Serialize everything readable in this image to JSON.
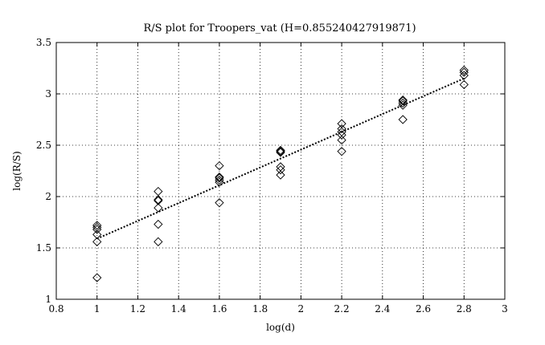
{
  "chart_data": {
    "type": "scatter",
    "title": "R/S plot for Troopers_vat (H=0.855240427919871)",
    "xlabel": "log(d)",
    "ylabel": "log(R/S)",
    "xlim": [
      0.8,
      3
    ],
    "ylim": [
      1,
      3.5
    ],
    "xticks": [
      "0.8",
      "1",
      "1.2",
      "1.4",
      "1.6",
      "1.8",
      "2",
      "2.2",
      "2.4",
      "2.6",
      "2.8",
      "3"
    ],
    "yticks": [
      "1",
      "1.5",
      "2",
      "2.5",
      "3",
      "3.5"
    ],
    "grid": true,
    "marker": "diamond",
    "series": [
      {
        "x": [
          1,
          1,
          1,
          1,
          1,
          1,
          1.3,
          1.3,
          1.3,
          1.3,
          1.3,
          1.3,
          1.6,
          1.6,
          1.6,
          1.6,
          1.6,
          1.6,
          1.9,
          1.9,
          1.9,
          1.9,
          1.9,
          1.9,
          2.2,
          2.2,
          2.2,
          2.2,
          2.2,
          2.2,
          2.5,
          2.5,
          2.5,
          2.5,
          2.5,
          2.8,
          2.8,
          2.8,
          2.8
        ],
        "y": [
          1.72,
          1.68,
          1.63,
          1.56,
          1.21,
          1.7,
          2.05,
          1.97,
          1.96,
          1.89,
          1.73,
          1.56,
          2.3,
          2.19,
          2.18,
          2.16,
          2.14,
          1.94,
          2.45,
          2.44,
          2.29,
          2.26,
          2.21,
          2.43,
          2.71,
          2.66,
          2.63,
          2.6,
          2.55,
          2.44,
          2.94,
          2.93,
          2.91,
          2.89,
          2.75,
          3.23,
          3.21,
          3.18,
          3.09
        ]
      }
    ],
    "fit_line": {
      "style": "dotted",
      "x": [
        1,
        2.8
      ],
      "y": [
        1.59,
        3.15
      ]
    }
  }
}
